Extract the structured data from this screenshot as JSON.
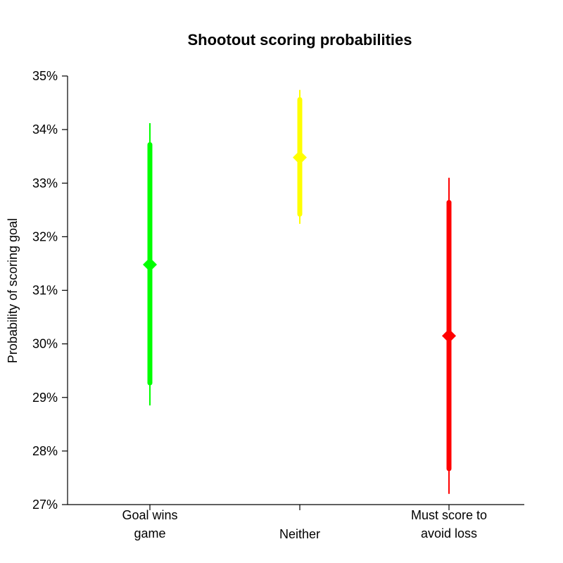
{
  "chart_data": {
    "type": "scatter",
    "title": "Shootout scoring probabilities",
    "xlabel": "",
    "ylabel": "Probability of scoring goal",
    "ylim": [
      27,
      35
    ],
    "yticks": [
      27,
      28,
      29,
      30,
      31,
      32,
      33,
      34,
      35
    ],
    "ytick_labels": [
      "27%",
      "28%",
      "29%",
      "30%",
      "31%",
      "32%",
      "33%",
      "34%",
      "35%"
    ],
    "categories": [
      [
        "Goal wins",
        "game"
      ],
      [
        "Neither"
      ],
      [
        "Must score to",
        "avoid loss"
      ]
    ],
    "series": [
      {
        "estimate": 31.48,
        "inner_interval": [
          29.27,
          33.72
        ],
        "outer_interval": [
          28.85,
          34.12
        ],
        "color": "#00ff00"
      },
      {
        "estimate": 33.48,
        "inner_interval": [
          32.42,
          34.56
        ],
        "outer_interval": [
          32.24,
          34.74
        ],
        "color": "#ffff00"
      },
      {
        "estimate": 30.15,
        "inner_interval": [
          27.67,
          32.64
        ],
        "outer_interval": [
          27.2,
          33.1
        ],
        "color": "#ff0000"
      }
    ],
    "grid": false,
    "legend": "none"
  }
}
